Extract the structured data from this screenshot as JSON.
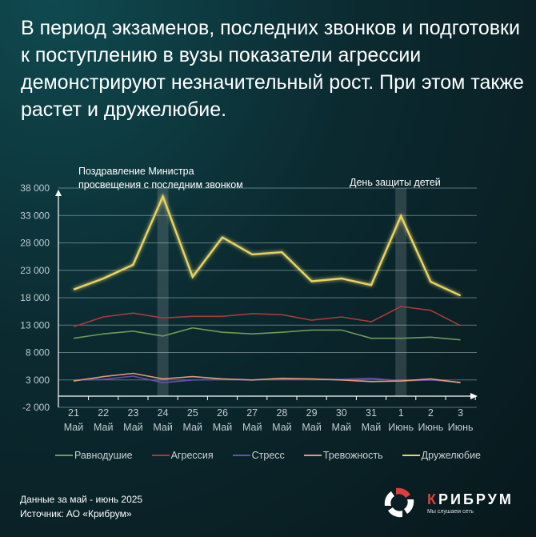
{
  "title": "В период экзаменов, последних звонков и подготовки к поступлению в вузы показатели агрессии демонстрируют незначительный рост. При этом также растет и дружелюбие.",
  "chart_data": {
    "type": "line",
    "title": "",
    "xlabel": "",
    "ylabel": "",
    "ylim": [
      -2000,
      38000
    ],
    "yticks": [
      -2000,
      3000,
      8000,
      13000,
      18000,
      23000,
      28000,
      33000,
      38000
    ],
    "ytick_labels": [
      "-2 000",
      "3 000",
      "8 000",
      "13 000",
      "18 000",
      "23 000",
      "28 000",
      "33 000",
      "38 000"
    ],
    "grid": true,
    "categories": [
      {
        "day": "21",
        "month": "Май"
      },
      {
        "day": "22",
        "month": "Май"
      },
      {
        "day": "23",
        "month": "Май"
      },
      {
        "day": "24",
        "month": "Май"
      },
      {
        "day": "25",
        "month": "Май"
      },
      {
        "day": "26",
        "month": "Май"
      },
      {
        "day": "27",
        "month": "Май"
      },
      {
        "day": "28",
        "month": "Май"
      },
      {
        "day": "29",
        "month": "Май"
      },
      {
        "day": "30",
        "month": "Май"
      },
      {
        "day": "31",
        "month": "Май"
      },
      {
        "day": "1",
        "month": "Июнь"
      },
      {
        "day": "2",
        "month": "Июнь"
      },
      {
        "day": "3",
        "month": "Июнь"
      }
    ],
    "series": [
      {
        "name": "Равнодушие",
        "color": "#6f9a5a",
        "values": [
          10600,
          11400,
          11900,
          11000,
          12500,
          11700,
          11400,
          11700,
          12100,
          12100,
          10600,
          10600,
          10800,
          10300
        ]
      },
      {
        "name": "Агрессия",
        "color": "#a83a3c",
        "values": [
          12700,
          14500,
          15200,
          14300,
          14600,
          14600,
          15100,
          14900,
          13900,
          14500,
          13600,
          16400,
          15700,
          12900
        ]
      },
      {
        "name": "Стресс",
        "color": "#6a4fb0",
        "values": [
          3000,
          3100,
          3700,
          2500,
          3000,
          3100,
          3000,
          3200,
          3100,
          3100,
          3300,
          2800,
          3000,
          2600
        ]
      },
      {
        "name": "Тревожность",
        "color": "#e0997a",
        "values": [
          2800,
          3600,
          4200,
          3200,
          3600,
          3200,
          3000,
          3300,
          3200,
          3000,
          2700,
          2800,
          3200,
          2500
        ]
      },
      {
        "name": "Дружелюбие",
        "color": "#e8d264",
        "values": [
          19500,
          21500,
          24000,
          36500,
          21800,
          29000,
          25900,
          26300,
          21000,
          21500,
          20300,
          32900,
          20900,
          18400
        ]
      }
    ],
    "annotations": [
      {
        "category_index": 3,
        "text_lines": [
          "Поздравление Министра",
          "просвещения с последним звонком"
        ]
      },
      {
        "category_index": 11,
        "text_lines": [
          "День защиты детей"
        ]
      }
    ],
    "legend_position": "bottom"
  },
  "footer": {
    "period": "Данные за май  - июнь 2025",
    "source": "Источник: АО «Крибрум»"
  },
  "logo": {
    "name_first": "К",
    "name_rest": "РИБРУМ",
    "slogan": "Мы слушаем сеть"
  }
}
